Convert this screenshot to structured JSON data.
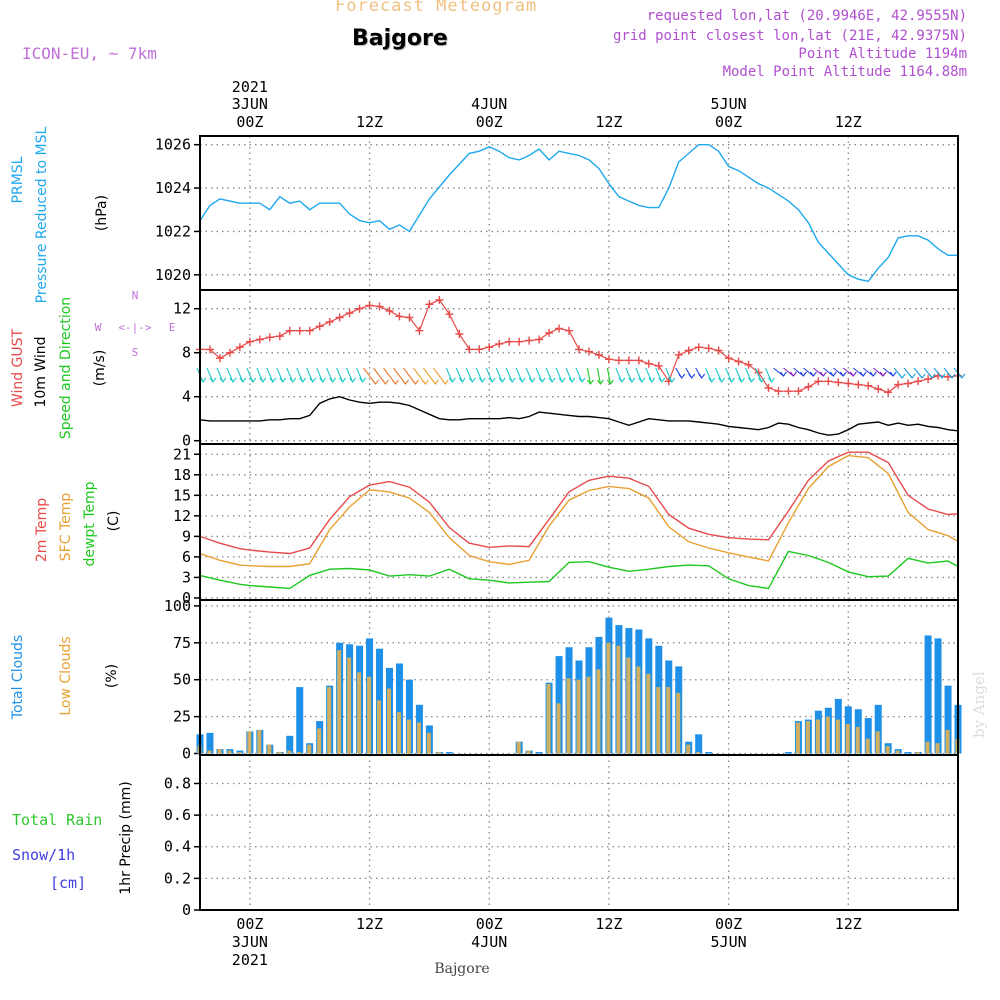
{
  "header": {
    "title": "Forecast Meteogram",
    "station": "Bajgore",
    "model": "ICON-EU, ~ 7km",
    "requested": "requested lon,lat (20.9946E, 42.9555N)",
    "grid_point": "grid point closest lon,lat (21E, 42.9375N)",
    "point_altitude": "Point Altitude 1194m",
    "model_altitude": "Model Point Altitude 1164.88m",
    "watermark": "by Angel"
  },
  "colors": {
    "pressure": "#1ea8ee",
    "gust": "#e84a4a",
    "wind": "#000000",
    "t2m": "#e84a4a",
    "sfc": "#e8a030",
    "dewpt": "#1ec81e",
    "total_clouds": "#1e90e8",
    "low_clouds": "#d0b060",
    "rain": "#2ec82e",
    "snow": "#4040e0",
    "compass": "#c070d8"
  },
  "time_axis": {
    "top_year": "2021",
    "top_labels": [
      {
        "h": 0,
        "line1": "3JUN",
        "line2": "00Z"
      },
      {
        "h": 12,
        "line1": "",
        "line2": "12Z"
      },
      {
        "h": 24,
        "line1": "4JUN",
        "line2": "00Z"
      },
      {
        "h": 36,
        "line1": "",
        "line2": "12Z"
      },
      {
        "h": 48,
        "line1": "5JUN",
        "line2": "00Z"
      },
      {
        "h": 60,
        "line1": "",
        "line2": "12Z"
      }
    ],
    "bottom_labels": [
      {
        "h": 0,
        "line1": "00Z",
        "line2": "3JUN",
        "line3": "2021"
      },
      {
        "h": 12,
        "line1": "12Z",
        "line2": "",
        "line3": ""
      },
      {
        "h": 24,
        "line1": "00Z",
        "line2": "4JUN",
        "line3": ""
      },
      {
        "h": 36,
        "line1": "12Z",
        "line2": "",
        "line3": ""
      },
      {
        "h": 48,
        "line1": "00Z",
        "line2": "5JUN",
        "line3": ""
      },
      {
        "h": 60,
        "line1": "12Z",
        "line2": "",
        "line3": ""
      }
    ],
    "x_range_hours": [
      -5,
      71
    ],
    "bottom_station": "Bajgore"
  },
  "chart_data": [
    {
      "type": "line",
      "panel": "pressure",
      "ylabel_lines": [
        "PRMSL",
        "Pressure Reduced to MSL",
        "(hPa)"
      ],
      "yticks": [
        1020,
        1022,
        1024,
        1026
      ],
      "ylim": [
        1019.3,
        1026.4
      ],
      "x": [
        -5,
        -4,
        -3,
        -2,
        -1,
        0,
        1,
        2,
        3,
        4,
        5,
        6,
        7,
        8,
        9,
        10,
        11,
        12,
        13,
        14,
        15,
        16,
        18,
        20,
        22,
        23,
        24,
        25,
        26,
        27,
        28,
        29,
        30,
        31,
        32,
        33,
        34,
        35,
        36,
        37,
        38,
        39,
        40,
        41,
        42,
        43,
        44,
        45,
        46,
        47,
        48,
        49,
        50,
        51,
        52,
        53,
        54,
        55,
        56,
        57,
        58,
        59,
        60,
        61,
        62,
        63,
        64,
        65,
        66,
        67,
        68,
        69,
        70,
        71
      ],
      "series": [
        {
          "values": [
            1022.5,
            1023.2,
            1023.5,
            1023.4,
            1023.3,
            1023.3,
            1023.3,
            1023.0,
            1023.6,
            1023.3,
            1023.4,
            1023.0,
            1023.3,
            1023.3,
            1023.3,
            1022.8,
            1022.5,
            1022.4,
            1022.5,
            1022.1,
            1022.3,
            1022.0,
            1023.5,
            1024.6,
            1025.6,
            1025.7,
            1025.9,
            1025.7,
            1025.4,
            1025.3,
            1025.5,
            1025.8,
            1025.3,
            1025.7,
            1025.6,
            1025.5,
            1025.3,
            1024.9,
            1024.2,
            1023.6,
            1023.4,
            1023.2,
            1023.1,
            1023.1,
            1024.0,
            1025.2,
            1025.6,
            1026.0,
            1026.0,
            1025.7,
            1025.0,
            1024.8,
            1024.5,
            1024.2,
            1024.0,
            1023.7,
            1023.4,
            1023.0,
            1022.4,
            1021.5,
            1021.0,
            1020.5,
            1020.0,
            1019.8,
            1019.7,
            1020.3,
            1020.8,
            1021.7,
            1021.8,
            1021.8,
            1021.6,
            1021.2,
            1020.9,
            1020.9
          ]
        }
      ]
    },
    {
      "type": "line",
      "panel": "wind",
      "ylabel_lines": [
        "Wind GUST",
        "10m Wind",
        "Speed and Direction",
        "(m/s)"
      ],
      "compass": {
        "n": "N",
        "s": "S",
        "e": "E",
        "w": "W",
        "arrows": "<-|->"
      },
      "yticks": [
        0,
        4,
        8,
        12
      ],
      "ylim": [
        -0.3,
        13.7
      ],
      "x": [
        -5,
        -4,
        -3,
        -2,
        -1,
        0,
        1,
        2,
        3,
        4,
        5,
        6,
        7,
        8,
        9,
        10,
        11,
        12,
        13,
        14,
        15,
        16,
        17,
        18,
        19,
        20,
        21,
        22,
        23,
        24,
        25,
        26,
        27,
        28,
        29,
        30,
        31,
        32,
        33,
        34,
        35,
        36,
        37,
        38,
        39,
        40,
        41,
        42,
        43,
        44,
        45,
        46,
        47,
        48,
        49,
        50,
        51,
        52,
        53,
        54,
        55,
        56,
        57,
        58,
        59,
        60,
        61,
        62,
        63,
        64,
        65,
        66,
        67,
        68,
        69,
        70,
        71
      ],
      "series": [
        {
          "name": "Wind GUST",
          "values": [
            8.3,
            8.3,
            7.5,
            8.0,
            8.5,
            9.0,
            9.2,
            9.4,
            9.5,
            10.0,
            10.0,
            10.0,
            10.4,
            10.8,
            11.2,
            11.6,
            12.0,
            12.3,
            12.2,
            11.8,
            11.3,
            11.2,
            10.0,
            12.4,
            12.8,
            11.5,
            9.7,
            8.3,
            8.3,
            8.5,
            8.8,
            9.0,
            9.0,
            9.1,
            9.2,
            9.8,
            10.2,
            10.0,
            8.3,
            8.1,
            7.8,
            7.4,
            7.3,
            7.3,
            7.3,
            7.0,
            6.8,
            5.4,
            7.8,
            8.2,
            8.5,
            8.4,
            8.2,
            7.5,
            7.2,
            6.9,
            6.2,
            4.8,
            4.5,
            4.5,
            4.5,
            4.9,
            5.4,
            5.4,
            5.3,
            5.2,
            5.1,
            5.0,
            4.7,
            4.4,
            5.1,
            5.2,
            5.4,
            5.6,
            5.9,
            5.8,
            5.9
          ]
        },
        {
          "name": "10m Wind",
          "values": [
            1.9,
            1.8,
            1.8,
            1.8,
            1.8,
            1.8,
            1.8,
            1.9,
            1.9,
            2.0,
            2.0,
            2.3,
            3.4,
            3.8,
            4.0,
            3.7,
            3.5,
            3.4,
            3.5,
            3.5,
            3.4,
            3.2,
            2.8,
            2.4,
            2.0,
            1.9,
            1.9,
            2.0,
            2.0,
            2.0,
            2.0,
            2.1,
            2.0,
            2.2,
            2.6,
            2.5,
            2.4,
            2.3,
            2.2,
            2.2,
            2.1,
            2.0,
            1.7,
            1.4,
            1.7,
            2.0,
            1.9,
            1.8,
            1.8,
            1.8,
            1.7,
            1.6,
            1.5,
            1.3,
            1.2,
            1.1,
            1.0,
            1.2,
            1.6,
            1.5,
            1.2,
            1.0,
            0.7,
            0.5,
            0.6,
            1.0,
            1.5,
            1.6,
            1.7,
            1.4,
            1.6,
            1.4,
            1.5,
            1.3,
            1.2,
            1.0,
            0.9
          ]
        }
      ]
    },
    {
      "type": "line",
      "panel": "temperature",
      "ylabel_lines": [
        "2m Temp",
        "SFC Temp",
        "dewpt Temp",
        "(C)"
      ],
      "yticks": [
        0,
        3,
        6,
        9,
        12,
        15,
        18,
        21
      ],
      "ylim": [
        -0.3,
        22.5
      ],
      "x": [
        -5,
        -3,
        -1,
        0,
        2,
        4,
        6,
        8,
        10,
        12,
        14,
        16,
        18,
        20,
        22,
        24,
        26,
        28,
        30,
        32,
        34,
        36,
        38,
        40,
        42,
        44,
        46,
        48,
        50,
        52,
        54,
        56,
        58,
        60,
        62,
        64,
        66,
        68,
        70,
        71
      ],
      "series": [
        {
          "name": "2m Temp",
          "values": [
            9.0,
            8.0,
            7.2,
            7.0,
            6.7,
            6.5,
            7.3,
            11.5,
            14.8,
            16.5,
            17.0,
            16.2,
            14.0,
            10.3,
            8.0,
            7.4,
            7.6,
            7.5,
            11.5,
            15.5,
            17.2,
            17.8,
            17.5,
            16.3,
            12.2,
            10.2,
            9.3,
            8.8,
            8.6,
            8.5,
            12.7,
            17.2,
            20.0,
            21.3,
            21.3,
            19.8,
            15.0,
            13.0,
            12.2,
            12.3
          ]
        },
        {
          "name": "SFC Temp",
          "values": [
            6.5,
            5.5,
            4.8,
            4.7,
            4.6,
            4.6,
            5.0,
            10.0,
            13.3,
            15.8,
            15.5,
            14.6,
            12.5,
            8.8,
            6.2,
            5.3,
            4.9,
            5.5,
            10.5,
            14.3,
            15.7,
            16.3,
            16.0,
            14.6,
            10.4,
            8.2,
            7.3,
            6.6,
            6.0,
            5.4,
            11.0,
            16.0,
            19.2,
            20.8,
            20.5,
            18.2,
            12.5,
            10.0,
            9.1,
            8.3
          ]
        },
        {
          "name": "dewpt Temp",
          "values": [
            3.3,
            2.6,
            2.0,
            1.8,
            1.6,
            1.4,
            3.3,
            4.2,
            4.3,
            4.1,
            3.2,
            3.4,
            3.2,
            4.2,
            2.8,
            2.6,
            2.2,
            2.3,
            2.4,
            5.2,
            5.3,
            4.5,
            3.9,
            4.2,
            4.6,
            4.8,
            4.7,
            2.8,
            1.8,
            1.4,
            6.8,
            6.2,
            5.2,
            3.8,
            3.1,
            3.2,
            5.8,
            5.1,
            5.4,
            4.6
          ]
        }
      ]
    },
    {
      "type": "bar",
      "panel": "clouds",
      "ylabel_lines": [
        "Total Clouds",
        "Low Clouds",
        "(%)"
      ],
      "yticks": [
        0,
        25,
        50,
        75,
        100
      ],
      "ylim": [
        -1,
        104
      ],
      "x": [
        -5,
        -4,
        -3,
        -2,
        -1,
        0,
        1,
        2,
        3,
        4,
        5,
        6,
        7,
        8,
        9,
        10,
        11,
        12,
        13,
        14,
        15,
        16,
        17,
        18,
        19,
        20,
        21,
        22,
        23,
        24,
        25,
        26,
        27,
        28,
        29,
        30,
        31,
        32,
        33,
        34,
        35,
        36,
        37,
        38,
        39,
        40,
        41,
        42,
        43,
        44,
        45,
        46,
        47,
        48,
        49,
        50,
        51,
        52,
        53,
        54,
        55,
        56,
        57,
        58,
        59,
        60,
        61,
        62,
        63,
        64,
        65,
        66,
        67,
        68,
        69,
        70,
        71
      ],
      "series": [
        {
          "name": "Total Clouds",
          "values": [
            13,
            14,
            3,
            3,
            2,
            15,
            16,
            6,
            1,
            12,
            45,
            7,
            22,
            46,
            75,
            74,
            73,
            78,
            71,
            58,
            61,
            50,
            33,
            19,
            1,
            1,
            0,
            0,
            0,
            0,
            0,
            0,
            8,
            2,
            1,
            48,
            66,
            72,
            63,
            72,
            79,
            92,
            87,
            85,
            84,
            78,
            73,
            63,
            59,
            8,
            13,
            1,
            0,
            0,
            0,
            0,
            0,
            0,
            0,
            1,
            22,
            23,
            29,
            31,
            37,
            32,
            30,
            24,
            33,
            7,
            3,
            1,
            1,
            80,
            78,
            46,
            33
          ]
        },
        {
          "name": "Low Clouds",
          "values": [
            5,
            2,
            3,
            2,
            1,
            15,
            16,
            6,
            1,
            2,
            1,
            6,
            17,
            45,
            70,
            65,
            55,
            52,
            36,
            44,
            28,
            23,
            21,
            14,
            1,
            0,
            0,
            0,
            0,
            0,
            0,
            0,
            8,
            2,
            0,
            47,
            34,
            51,
            50,
            52,
            57,
            75,
            73,
            65,
            59,
            54,
            45,
            45,
            41,
            6,
            1,
            0,
            0,
            0,
            0,
            0,
            0,
            0,
            0,
            0,
            21,
            22,
            23,
            25,
            23,
            20,
            18,
            10,
            15,
            5,
            2,
            0,
            1,
            8,
            7,
            16,
            10
          ]
        }
      ]
    },
    {
      "type": "bar",
      "panel": "precip",
      "ylabel_lines": [
        "1hr Precip (mm)"
      ],
      "legend": [
        "Total Rain",
        "Snow/1h",
        "[cm]"
      ],
      "yticks": [
        0,
        0.2,
        0.4,
        0.6,
        0.8
      ],
      "ylim": [
        0,
        0.98
      ],
      "series": [
        {
          "name": "Total Rain",
          "values": []
        }
      ]
    }
  ]
}
